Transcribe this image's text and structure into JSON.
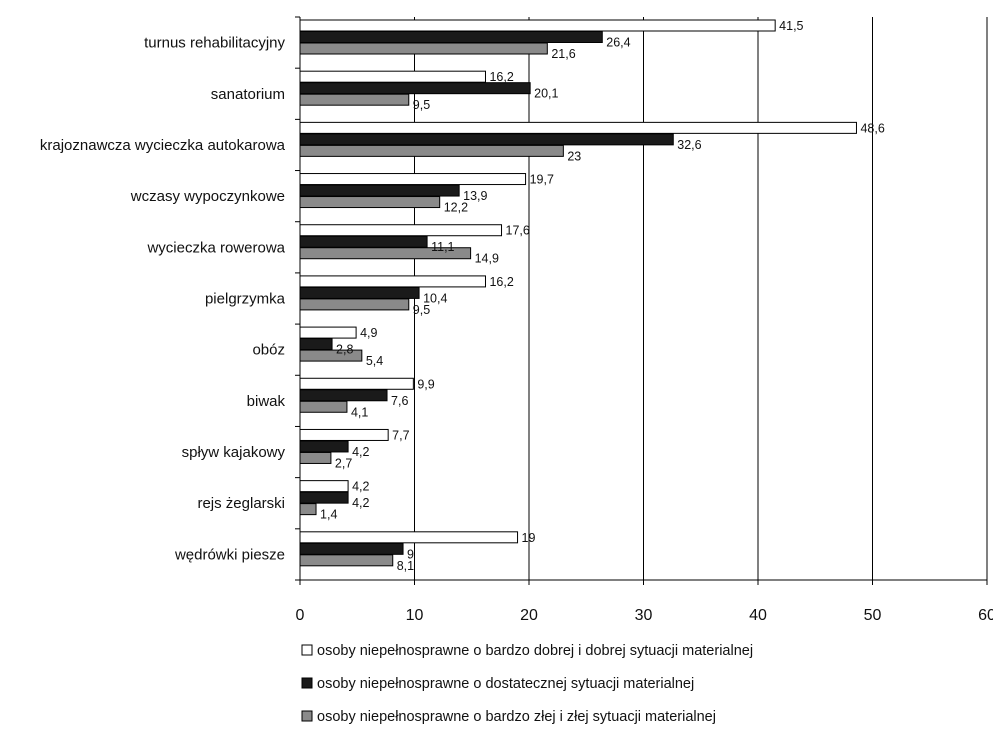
{
  "chart_data": {
    "type": "bar",
    "orientation": "horizontal",
    "categories": [
      "turnus rehabilitacyjny",
      "sanatorium",
      "krajoznawcza wycieczka autokarowa",
      "wczasy wypoczynkowe",
      "wycieczka rowerowa",
      "pielgrzymka",
      "obóz",
      "biwak",
      "spływ kajakowy",
      "rejs żeglarski",
      "wędrówki piesze"
    ],
    "series": [
      {
        "name": "osoby niepełnosprawne o bardzo dobrej i dobrej sytuacji materialnej",
        "color": "#ffffff",
        "values": [
          41.5,
          16.2,
          48.6,
          19.7,
          17.6,
          16.2,
          4.9,
          9.9,
          7.7,
          4.2,
          19
        ],
        "labels": [
          "41,5",
          "16,2",
          "48,6",
          "19,7",
          "17,6",
          "16,2",
          "4,9",
          "9,9",
          "7,7",
          "4,2",
          "19"
        ]
      },
      {
        "name": "osoby niepełnosprawne o dostatecznej sytuacji materialnej",
        "color": "#1a1a1a",
        "values": [
          26.4,
          20.1,
          32.6,
          13.9,
          11.1,
          10.4,
          2.8,
          7.6,
          4.2,
          4.2,
          9
        ],
        "labels": [
          "26,4",
          "20,1",
          "32,6",
          "13,9",
          "11,1",
          "10,4",
          "2,8",
          "7,6",
          "4,2",
          "4,2",
          "9"
        ]
      },
      {
        "name": "osoby niepełnosprawne o bardzo złej i złej sytuacji materialnej",
        "color": "#8a8a8a",
        "values": [
          21.6,
          9.5,
          23,
          12.2,
          14.9,
          9.5,
          5.4,
          4.1,
          2.7,
          1.4,
          8.1
        ],
        "labels": [
          "21,6",
          "9,5",
          "23",
          "12,2",
          "14,9",
          "9,5",
          "5,4",
          "4,1",
          "2,7",
          "1,4",
          "8,1"
        ]
      }
    ],
    "xlim": [
      0,
      60
    ],
    "xticks": [
      "0",
      "10",
      "20",
      "30",
      "40",
      "50",
      "60"
    ],
    "grid": "vertical",
    "legend_position": "bottom"
  }
}
